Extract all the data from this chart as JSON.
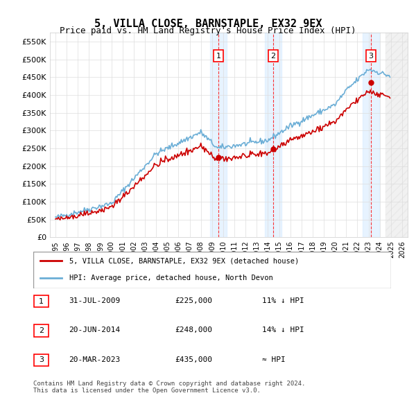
{
  "title": "5, VILLA CLOSE, BARNSTAPLE, EX32 9EX",
  "subtitle": "Price paid vs. HM Land Registry's House Price Index (HPI)",
  "legend_line1": "5, VILLA CLOSE, BARNSTAPLE, EX32 9EX (detached house)",
  "legend_line2": "HPI: Average price, detached house, North Devon",
  "footnote1": "Contains HM Land Registry data © Crown copyright and database right 2024.",
  "footnote2": "This data is licensed under the Open Government Licence v3.0.",
  "sales": [
    {
      "date": 2009.58,
      "price": 225000,
      "label": "1"
    },
    {
      "date": 2014.47,
      "price": 248000,
      "label": "2"
    },
    {
      "date": 2023.22,
      "price": 435000,
      "label": "3"
    }
  ],
  "sale_table": [
    {
      "num": "1",
      "date": "31-JUL-2009",
      "price": "£225,000",
      "relation": "11% ↓ HPI"
    },
    {
      "num": "2",
      "date": "20-JUN-2014",
      "price": "£248,000",
      "relation": "14% ↓ HPI"
    },
    {
      "num": "3",
      "date": "20-MAR-2023",
      "price": "£435,000",
      "relation": "≈ HPI"
    }
  ],
  "hpi_color": "#6baed6",
  "sale_color": "#cc0000",
  "highlight_color": "#ddeeff",
  "shade_color": "#e8e8f0",
  "ylim": [
    0,
    575000
  ],
  "yticks": [
    0,
    50000,
    100000,
    150000,
    200000,
    250000,
    300000,
    350000,
    400000,
    450000,
    500000,
    550000
  ],
  "xlim_start": 1994.5,
  "xlim_end": 2026.5
}
